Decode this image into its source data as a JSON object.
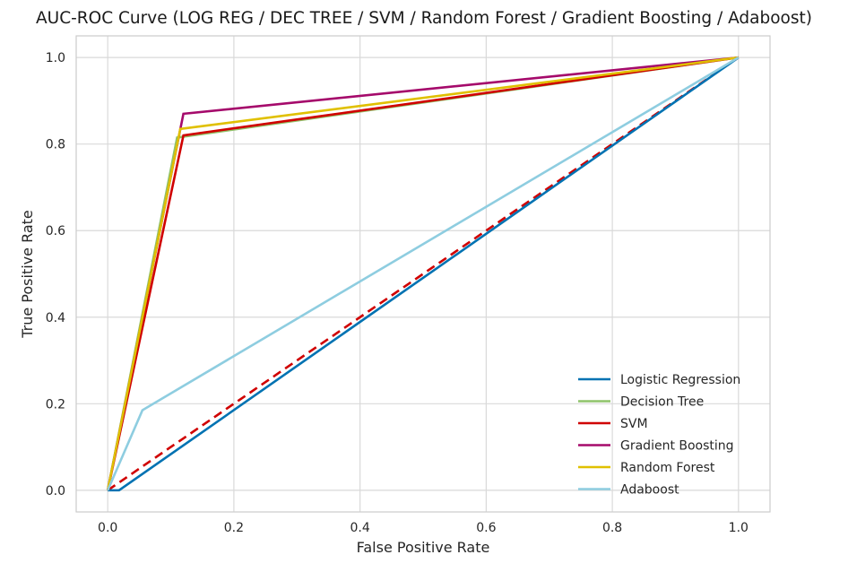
{
  "chart_data": {
    "type": "line",
    "title": "AUC-ROC Curve (LOG REG / DEC TREE / SVM / Random Forest / Gradient Boosting / Adaboost)",
    "xlabel": "False Positive Rate",
    "ylabel": "True Positive Rate",
    "xlim": [
      -0.05,
      1.05
    ],
    "ylim": [
      -0.05,
      1.05
    ],
    "xticks": [
      "0.0",
      "0.2",
      "0.4",
      "0.6",
      "0.8",
      "1.0"
    ],
    "yticks": [
      "0.0",
      "0.2",
      "0.4",
      "0.6",
      "0.8",
      "1.0"
    ],
    "grid": true,
    "legend_position": "lower-right",
    "series": [
      {
        "name": "Logistic Regression",
        "color": "#0072b2",
        "x": [
          0.0,
          0.018,
          1.0
        ],
        "y": [
          0.0,
          0.0,
          1.0
        ]
      },
      {
        "name": "Decision Tree",
        "color": "#8fc36a",
        "x": [
          0.0,
          0.11,
          1.0
        ],
        "y": [
          0.0,
          0.815,
          1.0
        ]
      },
      {
        "name": "SVM",
        "color": "#d00000",
        "x": [
          0.0,
          0.12,
          1.0
        ],
        "y": [
          0.0,
          0.82,
          1.0
        ]
      },
      {
        "name": "Gradient Boosting",
        "color": "#a50a6b",
        "x": [
          0.0,
          0.12,
          1.0
        ],
        "y": [
          0.0,
          0.87,
          1.0
        ]
      },
      {
        "name": "Random Forest",
        "color": "#e0c000",
        "x": [
          0.0,
          0.115,
          1.0
        ],
        "y": [
          0.0,
          0.835,
          1.0
        ]
      },
      {
        "name": "Adaboost",
        "color": "#8ecde0",
        "x": [
          0.0,
          0.055,
          1.0
        ],
        "y": [
          0.0,
          0.185,
          1.0
        ]
      }
    ],
    "reference_line": {
      "x": [
        0.0,
        1.0
      ],
      "y": [
        0.0,
        1.0
      ],
      "color": "#d00000",
      "style": "dashed"
    }
  }
}
